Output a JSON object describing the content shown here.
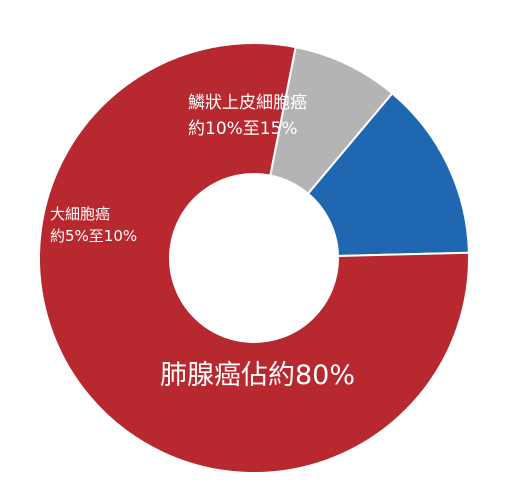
{
  "chart_data": {
    "type": "pie",
    "donut": true,
    "slices": [
      {
        "key": "squamous",
        "value": 13.5,
        "color": "#1f68b1",
        "label_lines": [
          "鱗狀上皮細胞癌",
          "約10%至15%"
        ]
      },
      {
        "key": "adeno",
        "value": 78.5,
        "color": "#b8282f",
        "label_lines": [
          "肺腺癌佔約80%"
        ]
      },
      {
        "key": "small",
        "value": 8.0,
        "color": "#b4b4b4",
        "label_lines": [
          "大細胞癌",
          "約5%至10%"
        ]
      }
    ]
  }
}
